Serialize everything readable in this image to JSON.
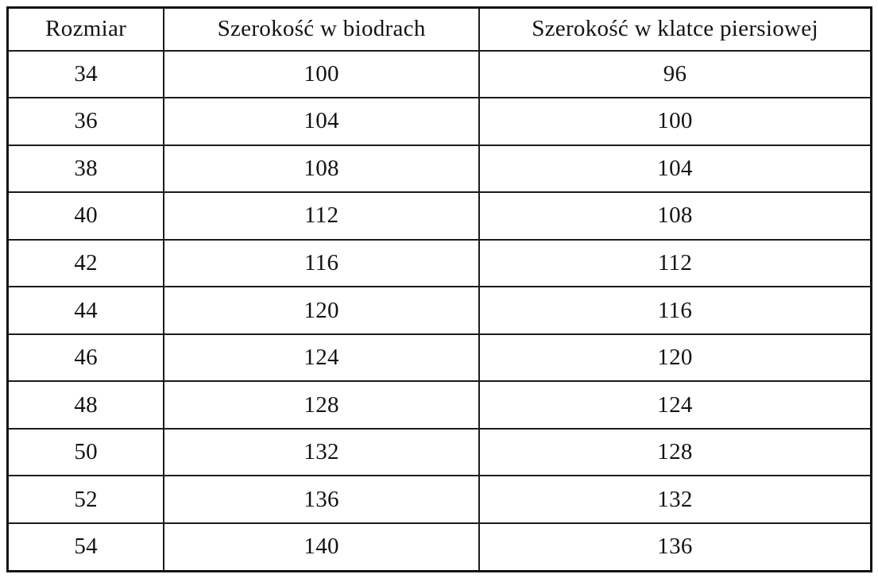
{
  "chart_data": {
    "type": "table",
    "title": "",
    "columns": [
      "Rozmiar",
      "Szerokość w biodrach",
      "Szerokość w klatce piersiowej"
    ],
    "rows": [
      [
        "34",
        "100",
        "96"
      ],
      [
        "36",
        "104",
        "100"
      ],
      [
        "38",
        "108",
        "104"
      ],
      [
        "40",
        "112",
        "108"
      ],
      [
        "42",
        "116",
        "112"
      ],
      [
        "44",
        "120",
        "116"
      ],
      [
        "46",
        "124",
        "120"
      ],
      [
        "48",
        "128",
        "124"
      ],
      [
        "50",
        "132",
        "128"
      ],
      [
        "52",
        "136",
        "132"
      ],
      [
        "54",
        "140",
        "136"
      ]
    ]
  },
  "colors": {
    "border": "#1c1c1c",
    "text": "#131313",
    "background": "#ffffff"
  }
}
